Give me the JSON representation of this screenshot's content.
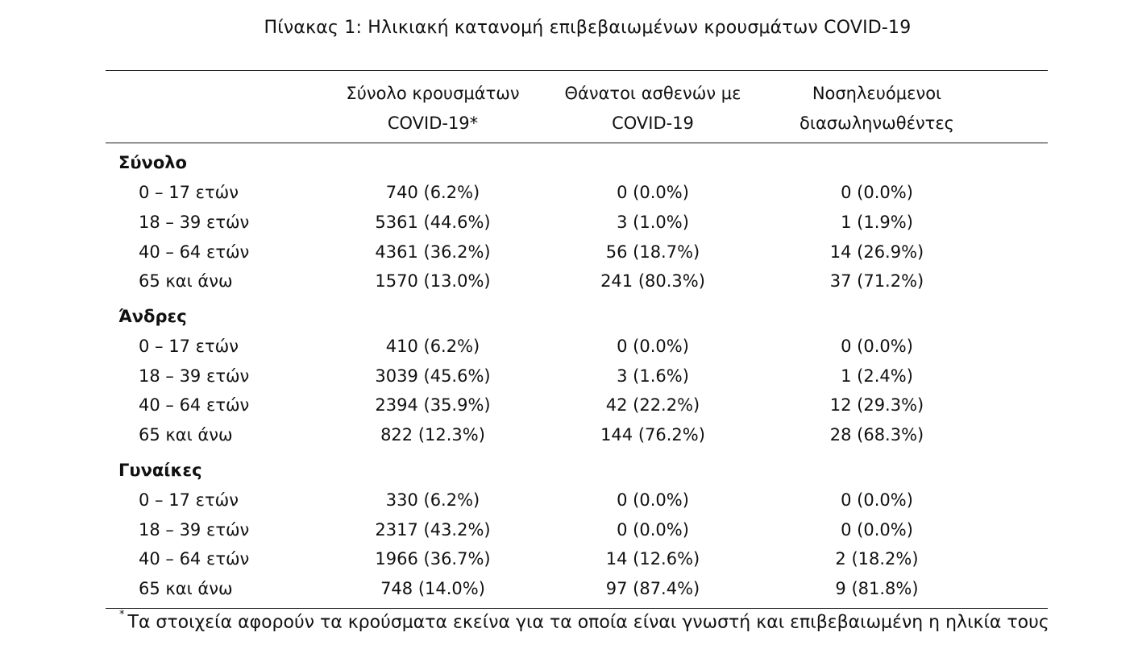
{
  "title": "Πίνακας 1: Ηλικιακή κατανομή επιβεβαιωμένων κρουσμάτων COVID-19",
  "columns": [
    {
      "line1": "Σύνολο κρουσμάτων",
      "line2": "COVID-19*"
    },
    {
      "line1": "Θάνατοι ασθενών με",
      "line2": "COVID-19"
    },
    {
      "line1": "Νοσηλευόμενοι",
      "line2": "διασωληνωθέντες"
    }
  ],
  "groups": [
    {
      "name": "Σύνολο",
      "rows": [
        {
          "label": "0 – 17 ετών",
          "values": [
            "740 (6.2%)",
            "0 (0.0%)",
            "0 (0.0%)"
          ]
        },
        {
          "label": "18 – 39 ετών",
          "values": [
            "5361 (44.6%)",
            "3 (1.0%)",
            "1 (1.9%)"
          ]
        },
        {
          "label": "40 – 64 ετών",
          "values": [
            "4361 (36.2%)",
            "56 (18.7%)",
            "14 (26.9%)"
          ]
        },
        {
          "label": "65 και άνω",
          "values": [
            "1570 (13.0%)",
            "241 (80.3%)",
            "37 (71.2%)"
          ]
        }
      ]
    },
    {
      "name": "Άνδρες",
      "rows": [
        {
          "label": "0 – 17 ετών",
          "values": [
            "410 (6.2%)",
            "0 (0.0%)",
            "0 (0.0%)"
          ]
        },
        {
          "label": "18 – 39 ετών",
          "values": [
            "3039 (45.6%)",
            "3 (1.6%)",
            "1 (2.4%)"
          ]
        },
        {
          "label": "40 – 64 ετών",
          "values": [
            "2394 (35.9%)",
            "42 (22.2%)",
            "12 (29.3%)"
          ]
        },
        {
          "label": "65 και άνω",
          "values": [
            "822 (12.3%)",
            "144 (76.2%)",
            "28 (68.3%)"
          ]
        }
      ]
    },
    {
      "name": "Γυναίκες",
      "rows": [
        {
          "label": "0 – 17 ετών",
          "values": [
            "330 (6.2%)",
            "0 (0.0%)",
            "0 (0.0%)"
          ]
        },
        {
          "label": "18 – 39 ετών",
          "values": [
            "2317 (43.2%)",
            "0 (0.0%)",
            "0 (0.0%)"
          ]
        },
        {
          "label": "40 – 64 ετών",
          "values": [
            "1966 (36.7%)",
            "14 (12.6%)",
            "2 (18.2%)"
          ]
        },
        {
          "label": "65 και άνω",
          "values": [
            "748 (14.0%)",
            "97 (87.4%)",
            "9 (81.8%)"
          ]
        }
      ]
    }
  ],
  "footnote": {
    "marker": "*",
    "text": "Τα στοιχεία αφορούν τα κρούσματα εκείνα για τα οποία είναι γνωστή και επιβεβαιωμένη η ηλικία τους"
  }
}
